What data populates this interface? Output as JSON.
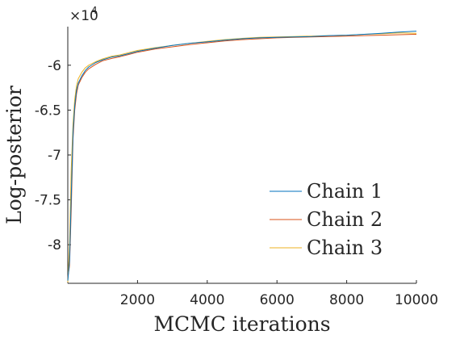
{
  "chart_data": {
    "type": "line",
    "title": "",
    "xlabel": "MCMC iterations",
    "ylabel": "Log-posterior",
    "xlim": [
      0,
      10000
    ],
    "ylim": [
      -84300,
      -55700
    ],
    "xticks": [
      2000,
      4000,
      6000,
      8000,
      10000
    ],
    "xtick_labels": [
      "2000",
      "4000",
      "6000",
      "8000",
      "10000"
    ],
    "yticks": [
      -80000,
      -75000,
      -70000,
      -65000,
      -60000
    ],
    "ytick_labels": [
      "-8",
      "-7.5",
      "-7",
      "-6.5",
      "-6"
    ],
    "y_exponent_label": "×10",
    "y_exponent_power": "4",
    "grid": false,
    "legend": {
      "position": "bottom-right",
      "entries": [
        "Chain 1",
        "Chain 2",
        "Chain 3"
      ]
    },
    "colors": {
      "Chain 1": "#0072BD",
      "Chain 2": "#D95319",
      "Chain 3": "#EDB120"
    },
    "x": [
      0,
      50,
      100,
      150,
      200,
      250,
      300,
      400,
      500,
      600,
      800,
      1000,
      1250,
      1500,
      1750,
      2000,
      2500,
      3000,
      3500,
      4000,
      4500,
      5000,
      5500,
      6000,
      6500,
      7000,
      7500,
      8000,
      8500,
      9000,
      9500,
      10000
    ],
    "series": [
      {
        "name": "Chain 1",
        "values": [
          -84000,
          -81800,
          -74500,
          -67500,
          -64500,
          -62800,
          -62000,
          -61200,
          -60600,
          -60200,
          -59700,
          -59400,
          -59100,
          -58950,
          -58700,
          -58450,
          -58100,
          -57800,
          -57550,
          -57400,
          -57200,
          -57050,
          -56950,
          -56900,
          -56850,
          -56800,
          -56700,
          -56650,
          -56550,
          -56450,
          -56300,
          -56200
        ]
      },
      {
        "name": "Chain 2",
        "values": [
          -83700,
          -82300,
          -76000,
          -68200,
          -65000,
          -63200,
          -62200,
          -61400,
          -60800,
          -60400,
          -59900,
          -59500,
          -59250,
          -59050,
          -58800,
          -58550,
          -58200,
          -57950,
          -57700,
          -57500,
          -57300,
          -57150,
          -57050,
          -56950,
          -56900,
          -56850,
          -56800,
          -56750,
          -56700,
          -56650,
          -56600,
          -56550
        ]
      },
      {
        "name": "Chain 3",
        "values": [
          -84200,
          -80000,
          -71500,
          -66500,
          -63800,
          -62300,
          -61500,
          -60800,
          -60300,
          -60000,
          -59600,
          -59300,
          -59000,
          -58850,
          -58600,
          -58350,
          -58050,
          -57800,
          -57550,
          -57350,
          -57150,
          -57000,
          -56900,
          -56850,
          -56800,
          -56750,
          -56700,
          -56650,
          -56550,
          -56500,
          -56400,
          -56450
        ]
      }
    ]
  }
}
